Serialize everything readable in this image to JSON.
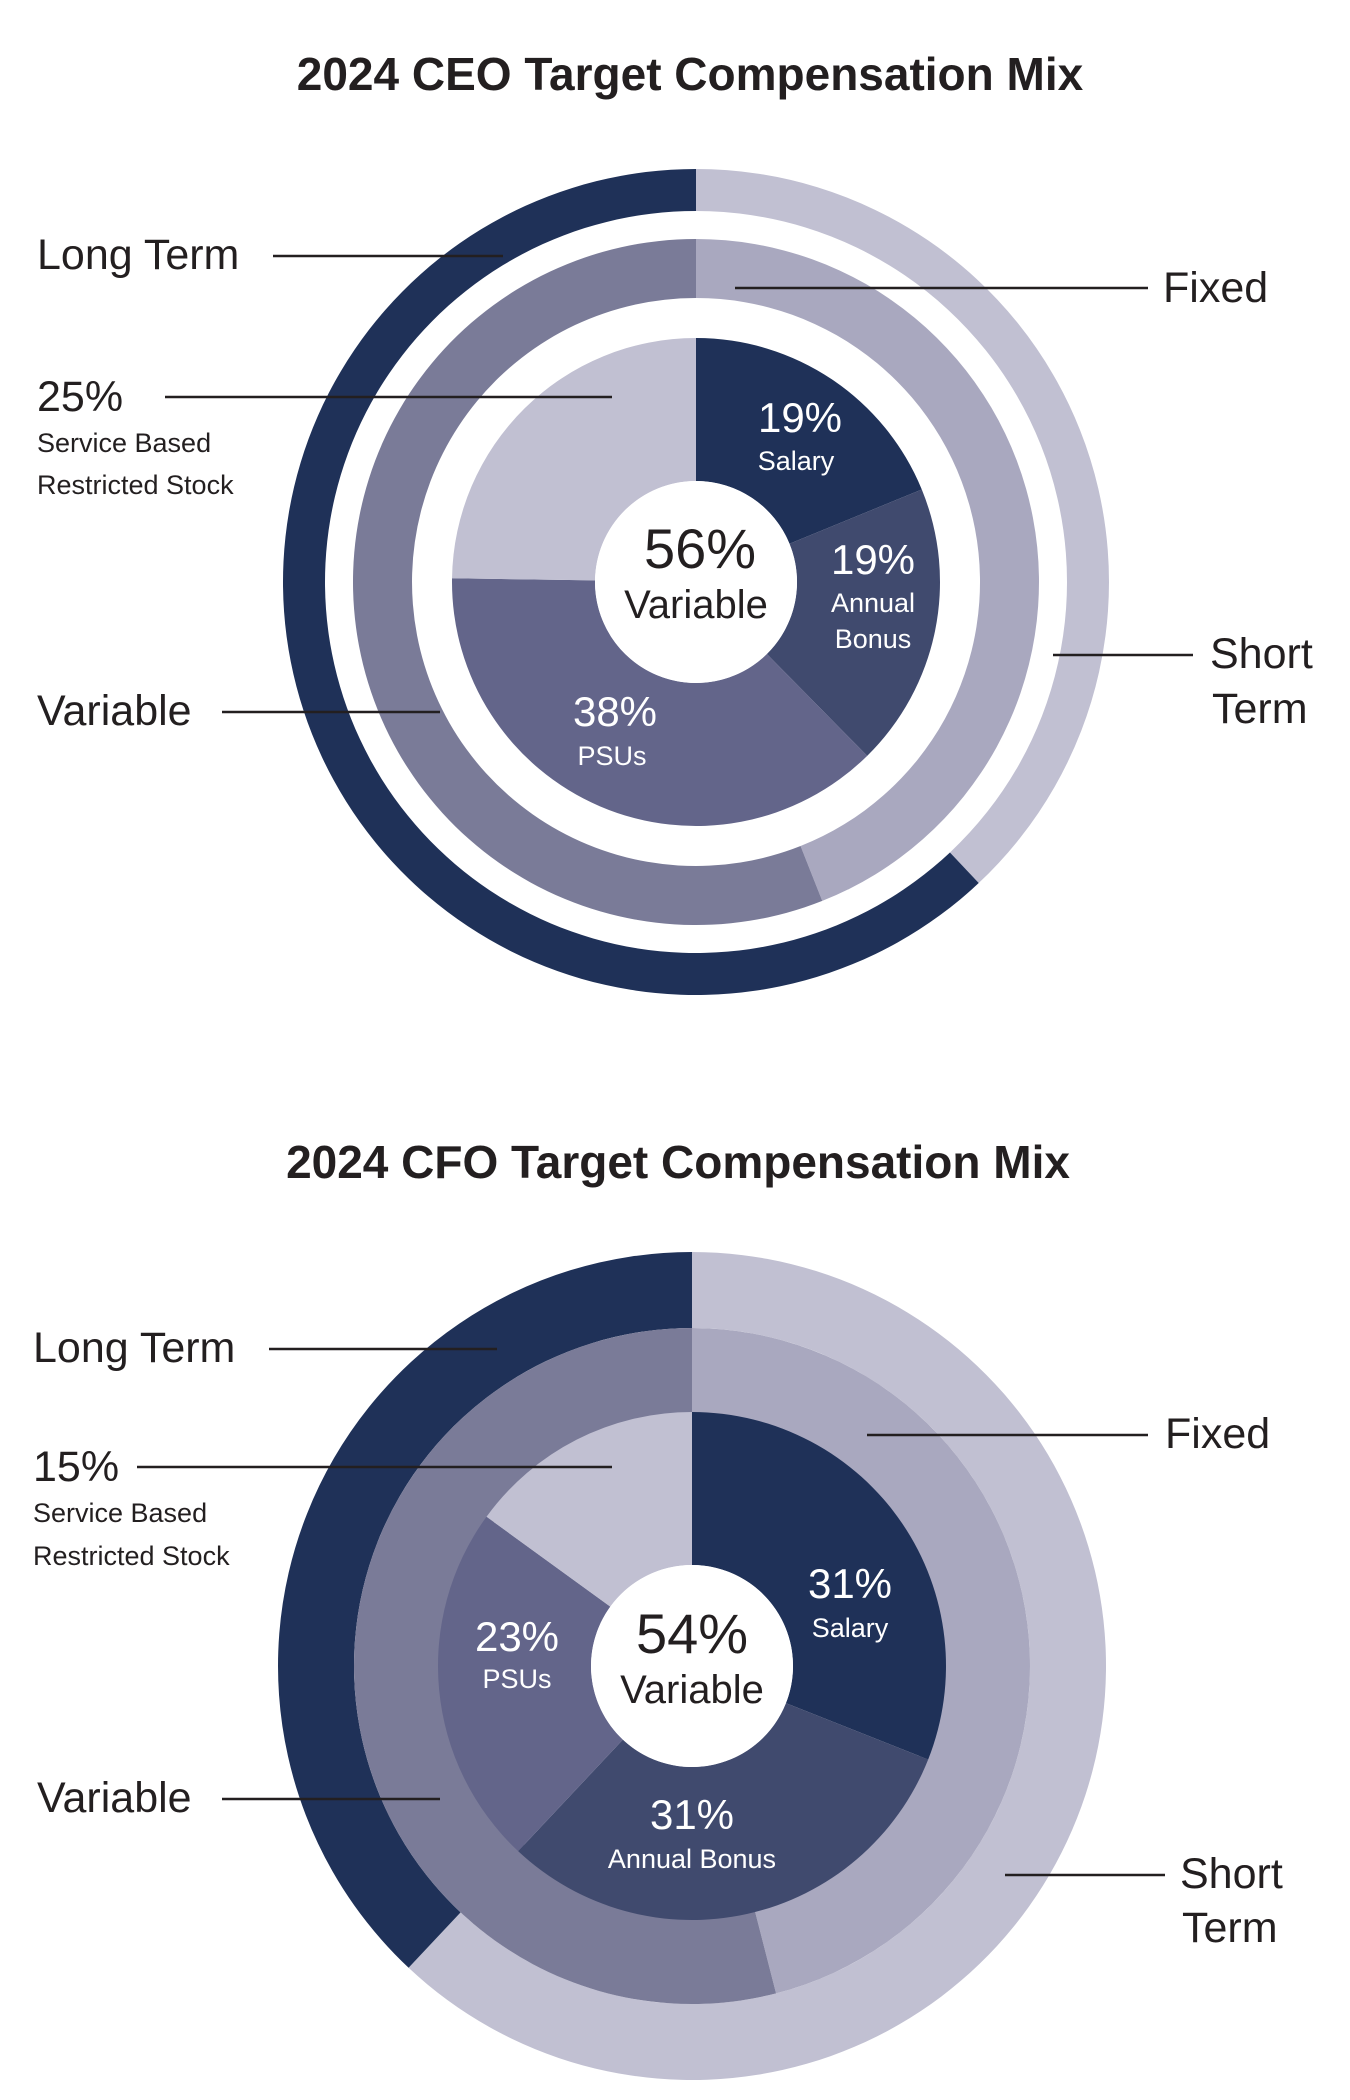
{
  "colors": {
    "navy": "#1f3158",
    "dark_slate": "#404a6e",
    "slate": "#63658a",
    "mid": "#7a7b98",
    "light_mid": "#a9a8bf",
    "light": "#c1c0d2",
    "white": "#ffffff",
    "text": "#231f20"
  },
  "chart_data": [
    {
      "type": "pie",
      "title": "2024 CEO Target Compensation Mix",
      "center": {
        "value": "56%",
        "label": "Variable"
      },
      "rings": {
        "outer": [
          {
            "name": "Short Term",
            "value": 38
          },
          {
            "name": "Long Term",
            "value": 62
          }
        ],
        "middle": [
          {
            "name": "Fixed",
            "value": 44
          },
          {
            "name": "Variable",
            "value": 56
          }
        ],
        "inner": [
          {
            "name": "Salary",
            "value": 19,
            "pct_label": "19%",
            "label": "Salary"
          },
          {
            "name": "Annual Bonus",
            "value": 19,
            "pct_label": "19%",
            "label": "Annual\nBonus"
          },
          {
            "name": "PSUs",
            "value": 38,
            "pct_label": "38%",
            "label": "PSUs"
          },
          {
            "name": "Service Based Restricted Stock",
            "value": 25,
            "pct_label": "25%",
            "label": ""
          }
        ]
      },
      "callouts": {
        "long_term": "Long Term",
        "fixed": "Fixed",
        "rs_pct": "25%",
        "rs_line1": "Service Based",
        "rs_line2": "Restricted Stock",
        "variable": "Variable",
        "short_term_line1": "Short",
        "short_term_line2": "Term"
      }
    },
    {
      "type": "pie",
      "title": "2024 CFO Target Compensation Mix",
      "center": {
        "value": "54%",
        "label": "Variable"
      },
      "rings": {
        "outer": [
          {
            "name": "Short Term",
            "value": 62
          },
          {
            "name": "Long Term",
            "value": 38
          }
        ],
        "middle": [
          {
            "name": "Fixed",
            "value": 46
          },
          {
            "name": "Variable",
            "value": 54
          }
        ],
        "inner": [
          {
            "name": "Salary",
            "value": 31,
            "pct_label": "31%",
            "label": "Salary"
          },
          {
            "name": "Annual Bonus",
            "value": 31,
            "pct_label": "31%",
            "label": "Annual Bonus"
          },
          {
            "name": "PSUs",
            "value": 23,
            "pct_label": "23%",
            "label": "PSUs"
          },
          {
            "name": "Service Based Restricted Stock",
            "value": 15,
            "pct_label": "15%",
            "label": ""
          }
        ]
      },
      "callouts": {
        "long_term": "Long Term",
        "fixed": "Fixed",
        "rs_pct": "15%",
        "rs_line1": "Service Based",
        "rs_line2": "Restricted Stock",
        "variable": "Variable",
        "short_term_line1": "Short",
        "short_term_line2": "Term"
      }
    }
  ]
}
